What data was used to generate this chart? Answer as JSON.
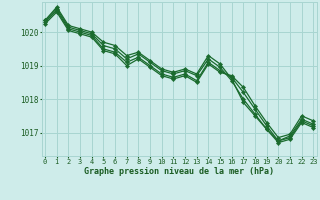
{
  "title": "Graphe pression niveau de la mer (hPa)",
  "xlabel_hours": [
    0,
    1,
    2,
    3,
    4,
    5,
    6,
    7,
    8,
    9,
    10,
    11,
    12,
    13,
    14,
    15,
    16,
    17,
    18,
    19,
    20,
    21,
    22,
    23
  ],
  "ylim": [
    1016.3,
    1020.9
  ],
  "yticks": [
    1017,
    1018,
    1019,
    1020
  ],
  "background_color": "#ceecea",
  "grid_color": "#a8d5d1",
  "line_color": "#1a6b2e",
  "marker_color": "#1a6b2e",
  "title_color": "#1a5c22",
  "tick_color": "#1a5c22",
  "figsize": [
    3.2,
    2.0
  ],
  "dpi": 100,
  "series": [
    [
      1020.35,
      1020.75,
      1020.2,
      1020.1,
      1020.0,
      1019.7,
      1019.6,
      1019.3,
      1019.4,
      1019.15,
      1018.9,
      1018.8,
      1018.9,
      1018.75,
      1019.3,
      1019.05,
      1018.6,
      1017.9,
      1017.5,
      1017.1,
      1016.75,
      1016.85,
      1017.35,
      1017.2
    ],
    [
      1020.35,
      1020.7,
      1020.15,
      1020.05,
      1019.95,
      1019.6,
      1019.5,
      1019.2,
      1019.35,
      1019.1,
      1018.85,
      1018.75,
      1018.85,
      1018.7,
      1019.2,
      1018.95,
      1018.55,
      1018.0,
      1017.55,
      1017.1,
      1016.7,
      1016.8,
      1017.3,
      1017.15
    ],
    [
      1020.3,
      1020.65,
      1020.1,
      1020.0,
      1019.9,
      1019.5,
      1019.4,
      1019.1,
      1019.25,
      1019.0,
      1018.75,
      1018.65,
      1018.75,
      1018.55,
      1019.1,
      1018.85,
      1018.65,
      1018.2,
      1017.7,
      1017.2,
      1016.75,
      1016.9,
      1017.4,
      1017.25
    ],
    [
      1020.25,
      1020.6,
      1020.05,
      1019.95,
      1019.85,
      1019.45,
      1019.35,
      1019.0,
      1019.2,
      1018.95,
      1018.7,
      1018.6,
      1018.7,
      1018.5,
      1019.05,
      1018.8,
      1018.7,
      1018.35,
      1017.8,
      1017.3,
      1016.85,
      1016.95,
      1017.5,
      1017.35
    ]
  ]
}
